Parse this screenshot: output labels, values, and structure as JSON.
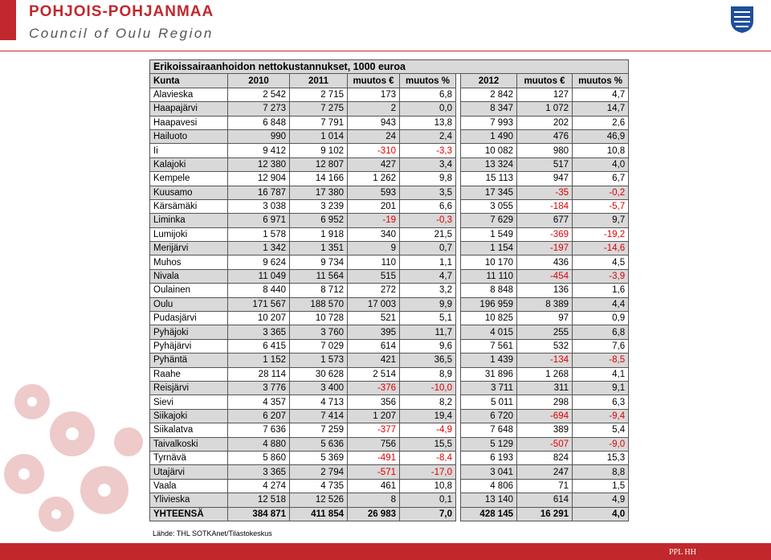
{
  "header": {
    "title": "POHJOIS-POHJANMAA",
    "subtitle": "Council of Oulu Region"
  },
  "table": {
    "title": "Erikoissairaanhoidon nettokustannukset, 1000 euroa",
    "columns": [
      "Kunta",
      "2010",
      "2011",
      "muutos €",
      "muutos %",
      "2012",
      "muutos €",
      "muutos %"
    ],
    "rows": [
      [
        "Alavieska",
        "2 542",
        "2 715",
        "173",
        "6,8",
        "2 842",
        "127",
        "4,7"
      ],
      [
        "Haapajärvi",
        "7 273",
        "7 275",
        "2",
        "0,0",
        "8 347",
        "1 072",
        "14,7"
      ],
      [
        "Haapavesi",
        "6 848",
        "7 791",
        "943",
        "13,8",
        "7 993",
        "202",
        "2,6"
      ],
      [
        "Hailuoto",
        "990",
        "1 014",
        "24",
        "2,4",
        "1 490",
        "476",
        "46,9"
      ],
      [
        "Ii",
        "9 412",
        "9 102",
        "-310",
        "-3,3",
        "10 082",
        "980",
        "10,8"
      ],
      [
        "Kalajoki",
        "12 380",
        "12 807",
        "427",
        "3,4",
        "13 324",
        "517",
        "4,0"
      ],
      [
        "Kempele",
        "12 904",
        "14 166",
        "1 262",
        "9,8",
        "15 113",
        "947",
        "6,7"
      ],
      [
        "Kuusamo",
        "16 787",
        "17 380",
        "593",
        "3,5",
        "17 345",
        "-35",
        "-0,2"
      ],
      [
        "Kärsämäki",
        "3 038",
        "3 239",
        "201",
        "6,6",
        "3 055",
        "-184",
        "-5,7"
      ],
      [
        "Liminka",
        "6 971",
        "6 952",
        "-19",
        "-0,3",
        "7 629",
        "677",
        "9,7"
      ],
      [
        "Lumijoki",
        "1 578",
        "1 918",
        "340",
        "21,5",
        "1 549",
        "-369",
        "-19,2"
      ],
      [
        "Merijärvi",
        "1 342",
        "1 351",
        "9",
        "0,7",
        "1 154",
        "-197",
        "-14,6"
      ],
      [
        "Muhos",
        "9 624",
        "9 734",
        "110",
        "1,1",
        "10 170",
        "436",
        "4,5"
      ],
      [
        "Nivala",
        "11 049",
        "11 564",
        "515",
        "4,7",
        "11 110",
        "-454",
        "-3,9"
      ],
      [
        "Oulainen",
        "8 440",
        "8 712",
        "272",
        "3,2",
        "8 848",
        "136",
        "1,6"
      ],
      [
        "Oulu",
        "171 567",
        "188 570",
        "17 003",
        "9,9",
        "196 959",
        "8 389",
        "4,4"
      ],
      [
        "Pudasjärvi",
        "10 207",
        "10 728",
        "521",
        "5,1",
        "10 825",
        "97",
        "0,9"
      ],
      [
        "Pyhäjoki",
        "3 365",
        "3 760",
        "395",
        "11,7",
        "4 015",
        "255",
        "6,8"
      ],
      [
        "Pyhäjärvi",
        "6 415",
        "7 029",
        "614",
        "9,6",
        "7 561",
        "532",
        "7,6"
      ],
      [
        "Pyhäntä",
        "1 152",
        "1 573",
        "421",
        "36,5",
        "1 439",
        "-134",
        "-8,5"
      ],
      [
        "Raahe",
        "28 114",
        "30 628",
        "2 514",
        "8,9",
        "31 896",
        "1 268",
        "4,1"
      ],
      [
        "Reisjärvi",
        "3 776",
        "3 400",
        "-376",
        "-10,0",
        "3 711",
        "311",
        "9,1"
      ],
      [
        "Sievi",
        "4 357",
        "4 713",
        "356",
        "8,2",
        "5 011",
        "298",
        "6,3"
      ],
      [
        "Siikajoki",
        "6 207",
        "7 414",
        "1 207",
        "19,4",
        "6 720",
        "-694",
        "-9,4"
      ],
      [
        "Siikalatva",
        "7 636",
        "7 259",
        "-377",
        "-4,9",
        "7 648",
        "389",
        "5,4"
      ],
      [
        "Taivalkoski",
        "4 880",
        "5 636",
        "756",
        "15,5",
        "5 129",
        "-507",
        "-9,0"
      ],
      [
        "Tyrnävä",
        "5 860",
        "5 369",
        "-491",
        "-8,4",
        "6 193",
        "824",
        "15,3"
      ],
      [
        "Utajärvi",
        "3 365",
        "2 794",
        "-571",
        "-17,0",
        "3 041",
        "247",
        "8,8"
      ],
      [
        "Vaala",
        "4 274",
        "4 735",
        "461",
        "10,8",
        "4 806",
        "71",
        "1,5"
      ],
      [
        "Ylivieska",
        "12 518",
        "12 526",
        "8",
        "0,1",
        "13 140",
        "614",
        "4,9"
      ]
    ],
    "total": [
      "YHTEENSÄ",
      "384 871",
      "411 854",
      "26 983",
      "7,0",
      "428 145",
      "16 291",
      "4,0"
    ],
    "source": "Lähde: THL SOTKAnet/Tilastokeskus"
  },
  "footer": "PPL HH"
}
